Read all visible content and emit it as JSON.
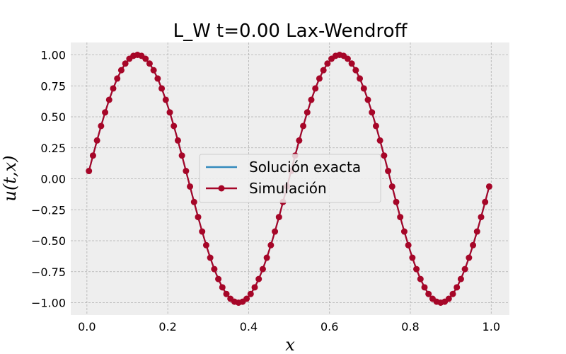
{
  "chart_data": {
    "type": "line",
    "title": "L_W t=0.00 Lax-Wendroff",
    "xlabel": "x",
    "ylabel": "u(t,x)",
    "xlim": [
      -0.04,
      1.045
    ],
    "ylim": [
      -1.1,
      1.1
    ],
    "xticks": [
      0.0,
      0.2,
      0.4,
      0.6,
      0.8,
      1.0
    ],
    "xtick_labels": [
      "0.0",
      "0.2",
      "0.4",
      "0.6",
      "0.8",
      "1.0"
    ],
    "yticks": [
      -1.0,
      -0.75,
      -0.5,
      -0.25,
      0.0,
      0.25,
      0.5,
      0.75,
      1.0
    ],
    "ytick_labels": [
      "−1.00",
      "−0.75",
      "−0.50",
      "−0.25",
      "0.00",
      "0.25",
      "0.50",
      "0.75",
      "1.00"
    ],
    "grid": true,
    "legend_position": "center",
    "series": [
      {
        "name": "Solución exacta",
        "color": "#348ABD",
        "marker": "none",
        "points": 100,
        "x_start": 0.005,
        "x_end": 0.995,
        "function": "sin(4*pi*x)"
      },
      {
        "name": "Simulación",
        "color": "#A60628",
        "marker": "circle",
        "points": 100,
        "x_start": 0.005,
        "x_end": 0.995,
        "function": "sin(4*pi*x)"
      }
    ]
  }
}
